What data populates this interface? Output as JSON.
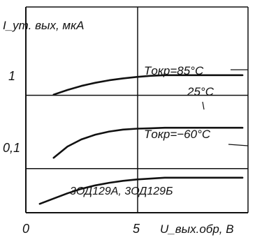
{
  "chart_data": {
    "type": "line",
    "y_scale": "log",
    "ylabel": "I_ут. вых, мкА",
    "xlabel": "U_вых.обр, В",
    "x_ticks": [
      "0",
      "5"
    ],
    "y_ticks": [
      {
        "value": 0.1,
        "label": "0,1"
      },
      {
        "value": 1,
        "label": "1"
      }
    ],
    "xlim": [
      0,
      8
    ],
    "ylim": [
      0.025,
      16
    ],
    "grid": true,
    "series": [
      {
        "name": "Tокр=85°C",
        "x": [
          1,
          1.5,
          2,
          2.5,
          3,
          3.5,
          4,
          4.5,
          5,
          6,
          7,
          7.8
        ],
        "y": [
          1.02,
          1.18,
          1.34,
          1.48,
          1.6,
          1.7,
          1.78,
          1.84,
          1.88,
          1.88,
          1.88,
          1.88
        ]
      },
      {
        "name": "25°C",
        "x": [
          1,
          1.5,
          2,
          2.5,
          3,
          3.5,
          4,
          4.5,
          5,
          6,
          7,
          7.8
        ],
        "y": [
          0.14,
          0.2,
          0.25,
          0.29,
          0.32,
          0.34,
          0.35,
          0.355,
          0.36,
          0.36,
          0.36,
          0.36
        ]
      },
      {
        "name": "Tокр=-60°C",
        "x": [
          0.5,
          1,
          1.5,
          2,
          2.5,
          3,
          3.5,
          4,
          4.5,
          5,
          6,
          7,
          7.8
        ],
        "y": [
          0.033,
          0.039,
          0.046,
          0.053,
          0.059,
          0.064,
          0.068,
          0.071,
          0.073,
          0.075,
          0.075,
          0.075,
          0.075
        ]
      }
    ],
    "annotations": {
      "t85": "Tокр=85°C",
      "t25": "25°C",
      "tm60": "Tокр=−60°C",
      "devices": "3ОД129А, 3ОД129Б"
    }
  }
}
